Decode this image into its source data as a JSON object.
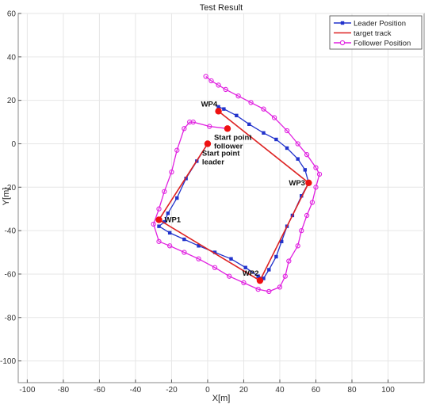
{
  "chart_data": {
    "type": "line",
    "title": "Test Result",
    "xlabel": "X[m]",
    "ylabel": "Y[m]",
    "xlim": [
      -105,
      120
    ],
    "ylim": [
      -110,
      60
    ],
    "xticks": [
      -100,
      -80,
      -60,
      -40,
      -20,
      0,
      20,
      40,
      60,
      80,
      100
    ],
    "yticks": [
      -100,
      -80,
      -60,
      -40,
      -20,
      0,
      20,
      40,
      60
    ],
    "grid": true,
    "legend_position": "top-right",
    "series": [
      {
        "name": "Leader Position",
        "color": "#2233cc",
        "marker": "square",
        "points": [
          [
            0,
            0
          ],
          [
            -6,
            -8
          ],
          [
            -12,
            -16
          ],
          [
            -17,
            -25
          ],
          [
            -22,
            -32
          ],
          [
            -24,
            -36
          ],
          [
            -27,
            -38
          ],
          [
            -21,
            -41
          ],
          [
            -13,
            -44
          ],
          [
            -5,
            -47
          ],
          [
            4,
            -50
          ],
          [
            13,
            -53
          ],
          [
            21,
            -57
          ],
          [
            28,
            -61
          ],
          [
            31,
            -62
          ],
          [
            34,
            -58
          ],
          [
            38,
            -52
          ],
          [
            41,
            -45
          ],
          [
            44,
            -38
          ],
          [
            47,
            -33
          ],
          [
            52,
            -24
          ],
          [
            56,
            -18
          ],
          [
            54,
            -12
          ],
          [
            50,
            -7
          ],
          [
            44,
            -2
          ],
          [
            38,
            2
          ],
          [
            31,
            5
          ],
          [
            23,
            9
          ],
          [
            16,
            13
          ],
          [
            9,
            16
          ],
          [
            6,
            17
          ]
        ]
      },
      {
        "name": "target track",
        "color": "#dd2222",
        "marker": "none",
        "points": [
          [
            6,
            15
          ],
          [
            56,
            -18
          ],
          [
            29,
            -63
          ],
          [
            -27,
            -35
          ],
          [
            0,
            0
          ]
        ]
      },
      {
        "name": "Follower Position",
        "color": "#e020e0",
        "marker": "circle",
        "points": [
          [
            11,
            7
          ],
          [
            1,
            8
          ],
          [
            -8,
            10
          ],
          [
            -10,
            10
          ],
          [
            -13,
            7
          ],
          [
            -17,
            -3
          ],
          [
            -20,
            -13
          ],
          [
            -24,
            -22
          ],
          [
            -27,
            -30
          ],
          [
            -30,
            -37
          ],
          [
            -27,
            -45
          ],
          [
            -21,
            -47
          ],
          [
            -13,
            -50
          ],
          [
            -5,
            -53
          ],
          [
            4,
            -57
          ],
          [
            12,
            -61
          ],
          [
            20,
            -64
          ],
          [
            28,
            -67
          ],
          [
            34,
            -68
          ],
          [
            40,
            -66
          ],
          [
            43,
            -61
          ],
          [
            45,
            -54
          ],
          [
            50,
            -47
          ],
          [
            52,
            -40
          ],
          [
            55,
            -33
          ],
          [
            58,
            -27
          ],
          [
            60,
            -20
          ],
          [
            62,
            -14
          ],
          [
            60,
            -11
          ],
          [
            55,
            -5
          ],
          [
            50,
            0
          ],
          [
            44,
            6
          ],
          [
            37,
            12
          ],
          [
            31,
            16
          ],
          [
            24,
            19
          ],
          [
            17,
            22
          ],
          [
            10,
            25
          ],
          [
            6,
            27
          ],
          [
            2,
            29
          ],
          [
            -1,
            31
          ]
        ]
      }
    ],
    "markers": [
      {
        "name": "WP4",
        "x": 6,
        "y": 15
      },
      {
        "name": "WP3",
        "x": 56,
        "y": -18
      },
      {
        "name": "WP2",
        "x": 29,
        "y": -63
      },
      {
        "name": "WP1",
        "x": -27,
        "y": -35
      },
      {
        "name": "Start point leader",
        "x": 0,
        "y": 0
      },
      {
        "name": "Start point follower",
        "x": 11,
        "y": 7
      }
    ],
    "annotations": [
      {
        "lines": [
          "WP4"
        ],
        "x": 6,
        "y": 15,
        "pos": "upper-left"
      },
      {
        "lines": [
          "WP3"
        ],
        "x": 56,
        "y": -18,
        "pos": "left"
      },
      {
        "lines": [
          "WP2"
        ],
        "x": 29,
        "y": -63,
        "pos": "upper-left"
      },
      {
        "lines": [
          "WP1"
        ],
        "x": -27,
        "y": -35,
        "pos": "right"
      },
      {
        "lines": [
          "Start point",
          "leader"
        ],
        "x": 0,
        "y": 0,
        "pos": "below-right"
      },
      {
        "lines": [
          "Start point",
          "follower"
        ],
        "x": 11,
        "y": 7,
        "pos": "below-left"
      }
    ],
    "marker_color": "#ee1111"
  }
}
